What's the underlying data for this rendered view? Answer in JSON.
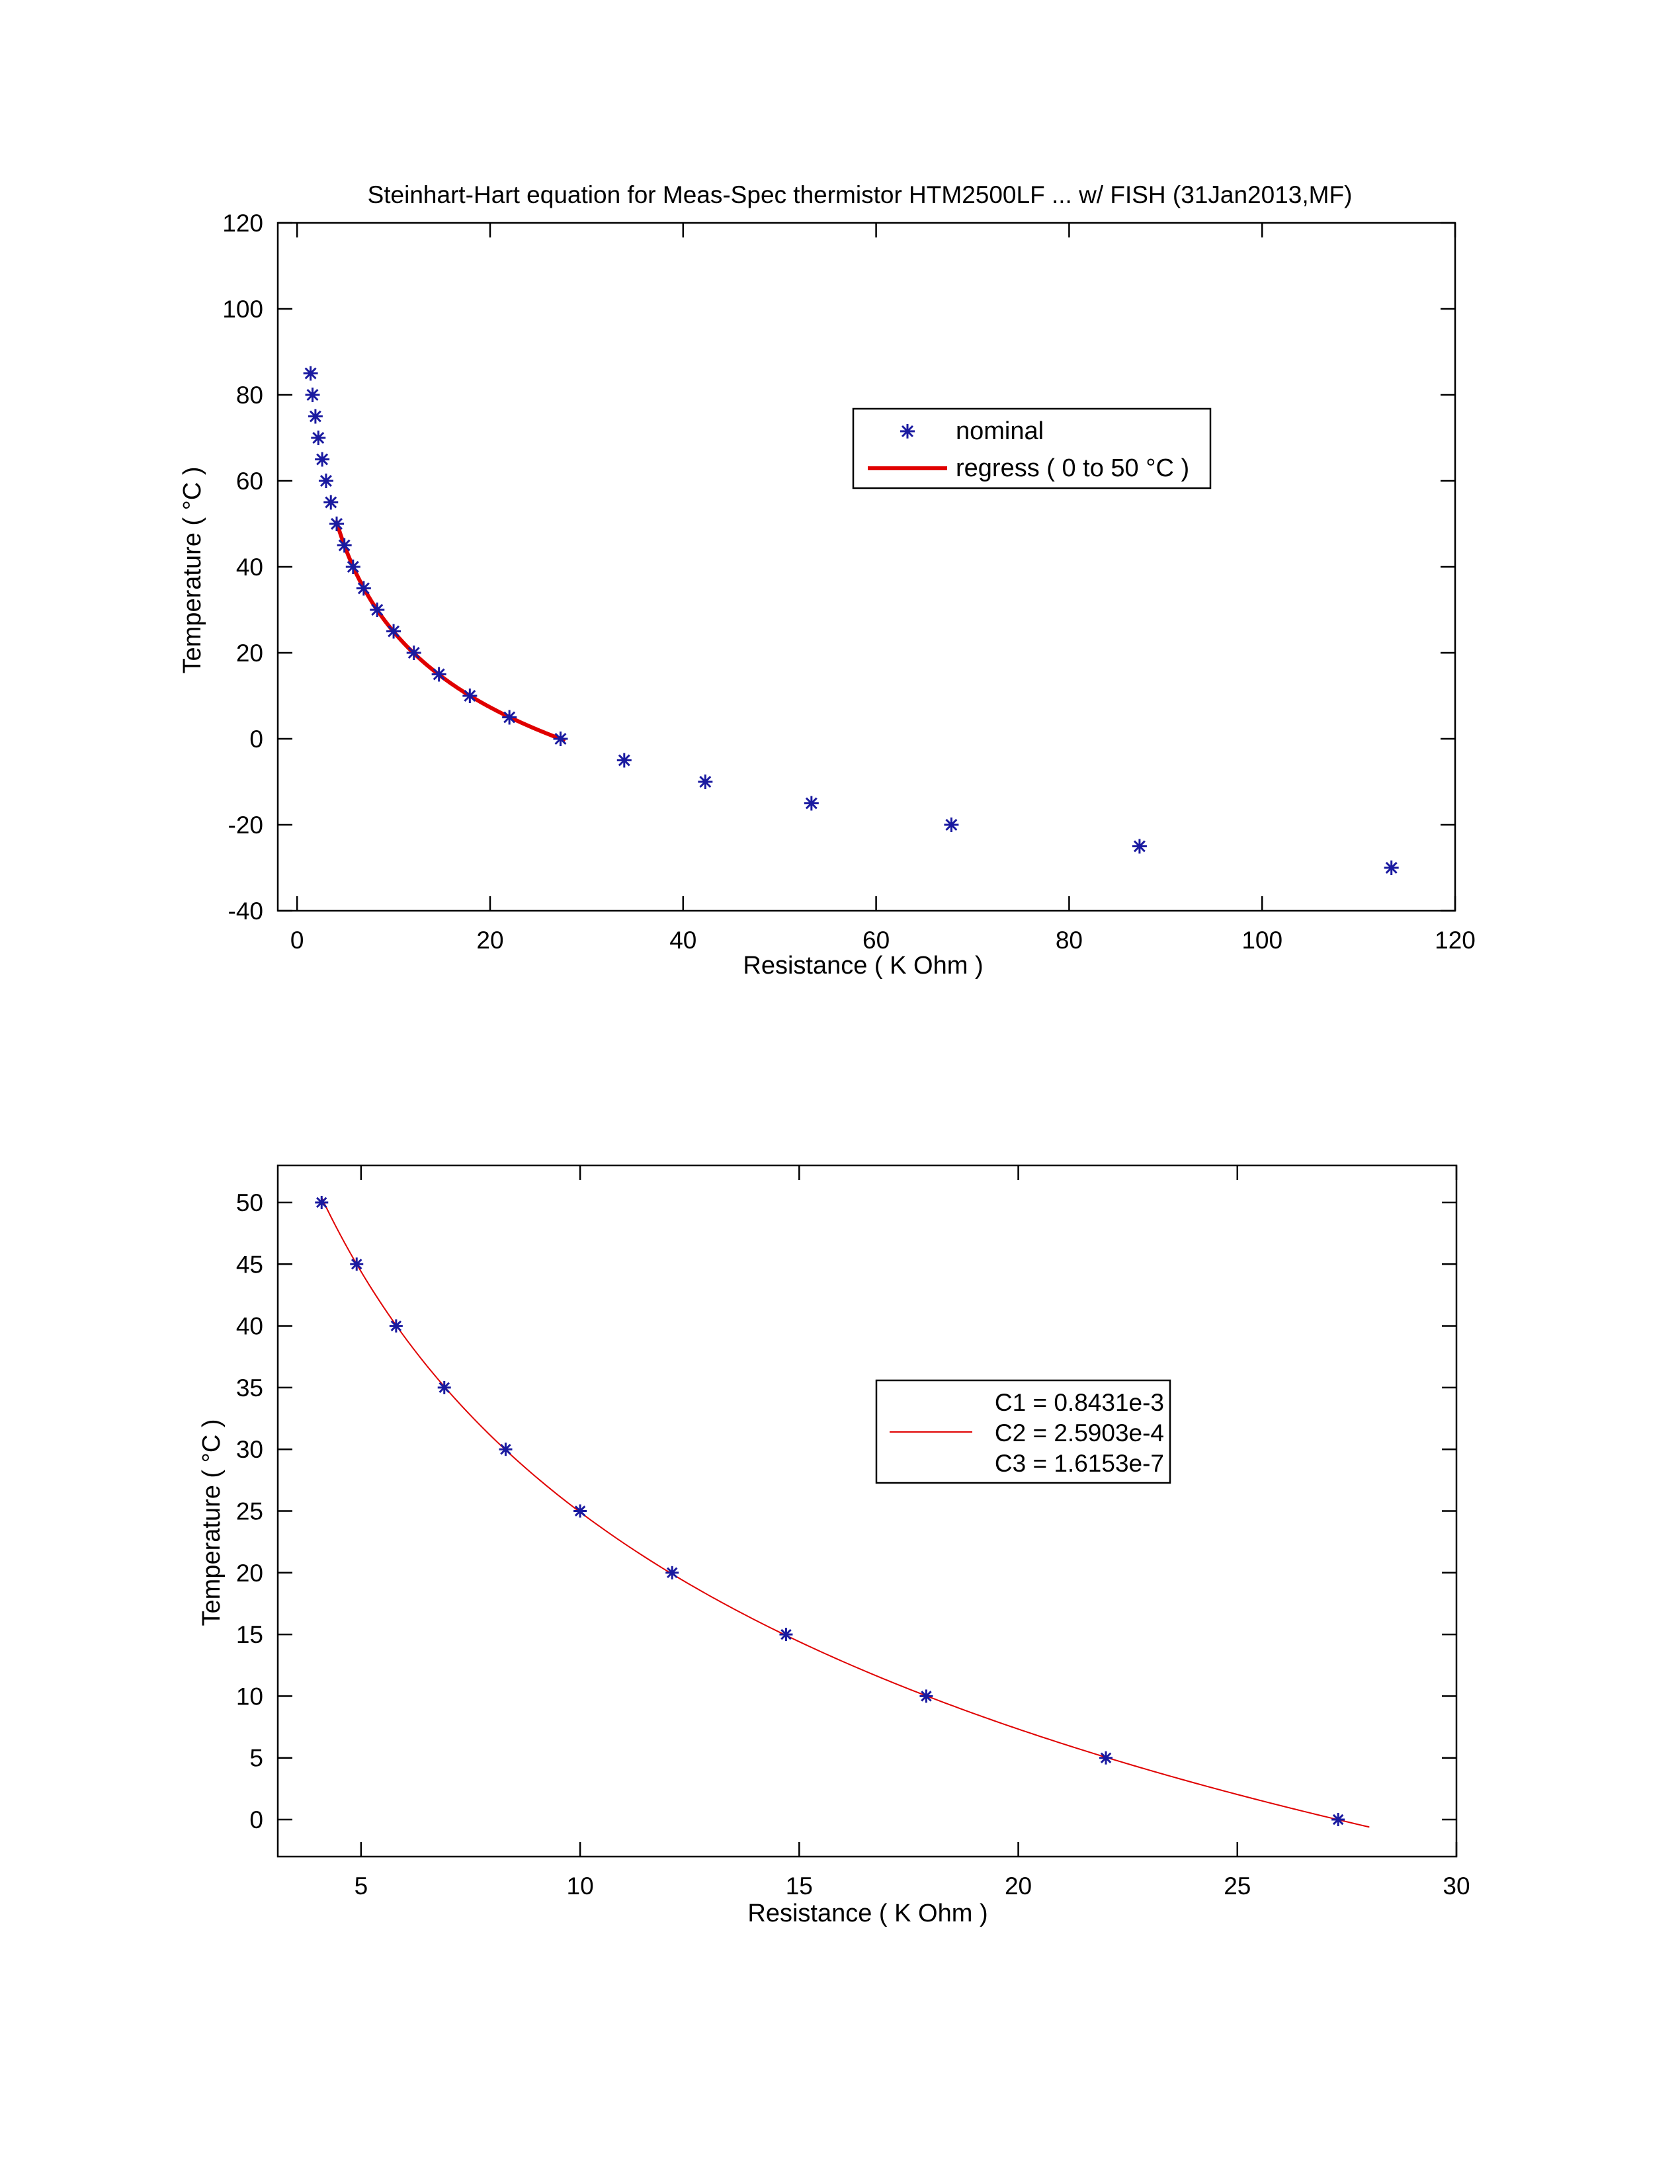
{
  "chart_data": [
    {
      "type": "scatter",
      "title": "Steinhart-Hart equation  for  Meas-Spec thermistor HTM2500LF  ... w/ FISH   (31Jan2013,MF)",
      "xlabel": "Resistance  ( K Ohm )",
      "ylabel": "Temperature ( °C )",
      "xlim": [
        -2,
        120
      ],
      "ylim": [
        -40,
        120
      ],
      "xticks": [
        "0",
        "20",
        "40",
        "60",
        "80",
        "100",
        "120"
      ],
      "yticks": [
        "-40",
        "-20",
        "0",
        "20",
        "40",
        "60",
        "80",
        "100",
        "120"
      ],
      "grid": false,
      "legend": {
        "position": "top-right",
        "entries": [
          "nominal",
          "regress ( 0 to 50 °C )"
        ]
      },
      "series": [
        {
          "name": "nominal",
          "mark": "asterisk",
          "color": "#1a1aa0",
          "points": [
            [
              1.4,
              85
            ],
            [
              1.6,
              80
            ],
            [
              1.9,
              75
            ],
            [
              2.2,
              70
            ],
            [
              2.6,
              65
            ],
            [
              3.0,
              60
            ],
            [
              3.5,
              55
            ],
            [
              4.1,
              50
            ],
            [
              4.9,
              45
            ],
            [
              5.8,
              40
            ],
            [
              6.9,
              35
            ],
            [
              8.3,
              30
            ],
            [
              10.0,
              25
            ],
            [
              12.1,
              20
            ],
            [
              14.7,
              15
            ],
            [
              17.9,
              10
            ],
            [
              22.0,
              5
            ],
            [
              27.3,
              0
            ],
            [
              33.9,
              -5
            ],
            [
              42.3,
              -10
            ],
            [
              53.3,
              -15
            ],
            [
              67.8,
              -20
            ],
            [
              87.3,
              -25
            ],
            [
              113.4,
              -30
            ]
          ]
        },
        {
          "name": "regress ( 0 to 50 °C )",
          "mark": "line",
          "color": "#e00000",
          "range": [
            4.1,
            27.6
          ]
        }
      ]
    },
    {
      "type": "scatter",
      "xlabel": "Resistance  ( K Ohm )",
      "ylabel": "Temperature ( °C )",
      "xlim": [
        3.1,
        30
      ],
      "ylim": [
        -3,
        53
      ],
      "xticks": [
        "5",
        "10",
        "15",
        "20",
        "25",
        "30"
      ],
      "yticks": [
        "0",
        "5",
        "10",
        "15",
        "20",
        "25",
        "30",
        "35",
        "40",
        "45",
        "50"
      ],
      "grid": false,
      "legend": {
        "position": "top-right",
        "entries": [
          "C1 = 0.8431e-3",
          "C2 = 2.5903e-4",
          "C3 = 1.6153e-7"
        ]
      },
      "coefficients": {
        "C1": 0.0008431,
        "C2": 0.00025903,
        "C3": 1.6153e-07
      },
      "series": [
        {
          "mark": "asterisk",
          "color": "#1a1aa0",
          "points": [
            [
              4.1,
              50
            ],
            [
              4.9,
              45
            ],
            [
              5.8,
              40
            ],
            [
              6.9,
              35
            ],
            [
              8.3,
              30
            ],
            [
              10.0,
              25
            ],
            [
              12.1,
              20
            ],
            [
              14.7,
              15
            ],
            [
              17.9,
              10
            ],
            [
              22.0,
              5
            ],
            [
              27.3,
              0
            ]
          ]
        },
        {
          "mark": "line",
          "color": "#e00000",
          "range": [
            4.1,
            28.0
          ]
        }
      ]
    }
  ]
}
